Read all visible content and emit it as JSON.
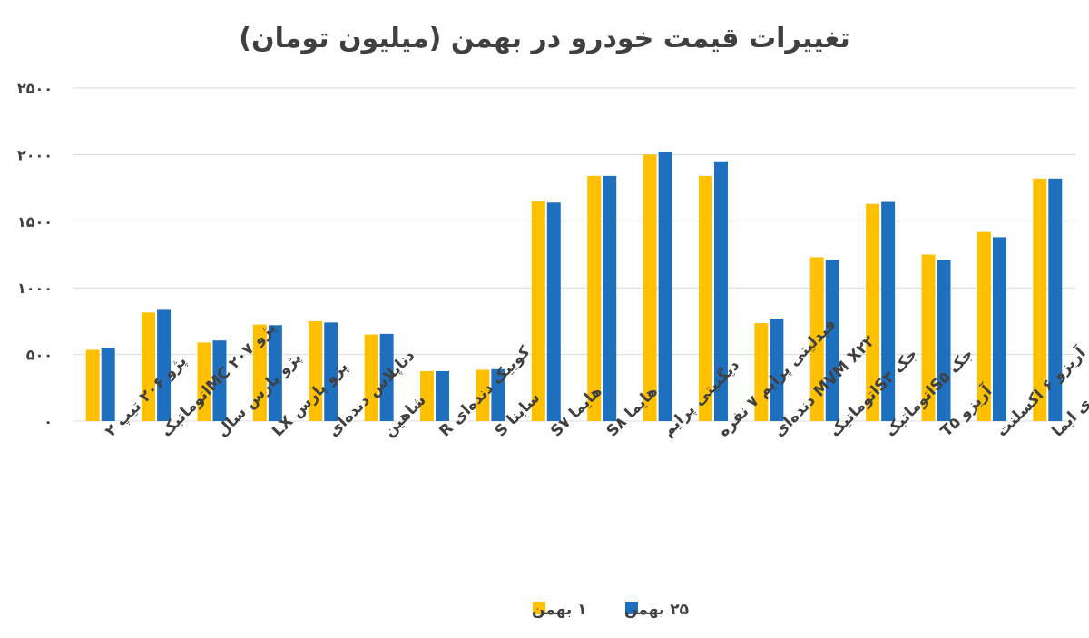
{
  "chart_data": {
    "type": "bar",
    "title": "تغییرات قیمت خودرو در بهمن (میلیون تومان)",
    "xlabel": "",
    "ylabel": "",
    "ylim": [
      0,
      2500
    ],
    "yticks": [
      0,
      500,
      1000,
      1500,
      2000,
      2500
    ],
    "ytick_labels": [
      "۰",
      "۵۰۰",
      "۱۰۰۰",
      "۱۵۰۰",
      "۲۰۰۰",
      "۲۵۰۰"
    ],
    "grid": true,
    "legend_position": "bottom",
    "categories": [
      "پژو ۲۰۶ تیپ ۲",
      "پژو ۲۰۷ MCاتوماتیک",
      "پژو پارس سال",
      "پژو پارس LX",
      "دناپلاس دنده‌ای",
      "شاهین",
      "کوییک دنده‌ای R",
      "ساینا S",
      "هایما S۷",
      "هایما S۸",
      "دیگنیتی پرایم",
      "فیدلیتی پرایم ۷ نفره",
      "MVM X۲۲ دنده‌ای",
      "جک S۳اتوماتیک",
      "جک S۵اتوماتیک",
      "آریزو T۵",
      "آریزو ۶ اکسلنت",
      "لاماری ایما"
    ],
    "series": [
      {
        "name": "۱ بهمن",
        "color": "#ffc000",
        "values": [
          535,
          815,
          590,
          725,
          750,
          650,
          375,
          385,
          1650,
          1840,
          2000,
          1840,
          735,
          1230,
          1630,
          1250,
          1420,
          1820
        ]
      },
      {
        "name": "۲۵ بهمن",
        "color": "#1f6fbf",
        "values": [
          550,
          835,
          605,
          720,
          740,
          655,
          375,
          390,
          1640,
          1840,
          2020,
          1950,
          770,
          1210,
          1645,
          1210,
          1380,
          1820
        ]
      }
    ]
  }
}
